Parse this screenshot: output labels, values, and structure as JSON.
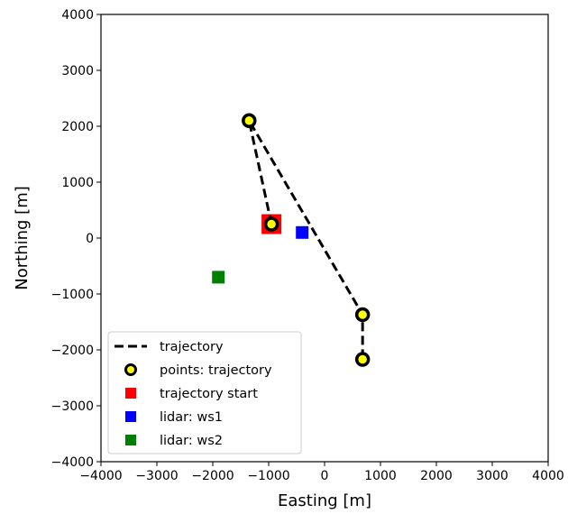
{
  "chart_data": {
    "type": "scatter",
    "title": "",
    "xlabel": "Easting [m]",
    "ylabel": "Northing [m]",
    "xlim": [
      -4000,
      4000
    ],
    "ylim": [
      -4000,
      4000
    ],
    "xticks": [
      -4000,
      -3000,
      -2000,
      -1000,
      0,
      1000,
      2000,
      3000,
      4000
    ],
    "yticks": [
      -4000,
      -3000,
      -2000,
      -1000,
      0,
      1000,
      2000,
      3000,
      4000
    ],
    "grid": false,
    "legend_position": "lower-left",
    "series": [
      {
        "name": "trajectory",
        "kind": "dashed-line",
        "color": "#000000",
        "points": [
          [
            -950,
            250
          ],
          [
            -1350,
            2100
          ],
          [
            680,
            -1370
          ],
          [
            680,
            -2170
          ]
        ]
      },
      {
        "name": "points: trajectory",
        "kind": "circle-marker",
        "color": "#ffff00",
        "edge_color": "#000000",
        "points": [
          [
            -950,
            250
          ],
          [
            -1350,
            2100
          ],
          [
            680,
            -1370
          ],
          [
            680,
            -2170
          ]
        ]
      },
      {
        "name": "trajectory start",
        "kind": "square-marker",
        "color": "#ff0000",
        "points": [
          [
            -950,
            250
          ]
        ]
      },
      {
        "name": "lidar: ws1",
        "kind": "square-marker",
        "color": "#0000ff",
        "points": [
          [
            -400,
            100
          ]
        ]
      },
      {
        "name": "lidar: ws2",
        "kind": "square-marker",
        "color": "#008000",
        "points": [
          [
            -1900,
            -700
          ]
        ]
      }
    ]
  }
}
